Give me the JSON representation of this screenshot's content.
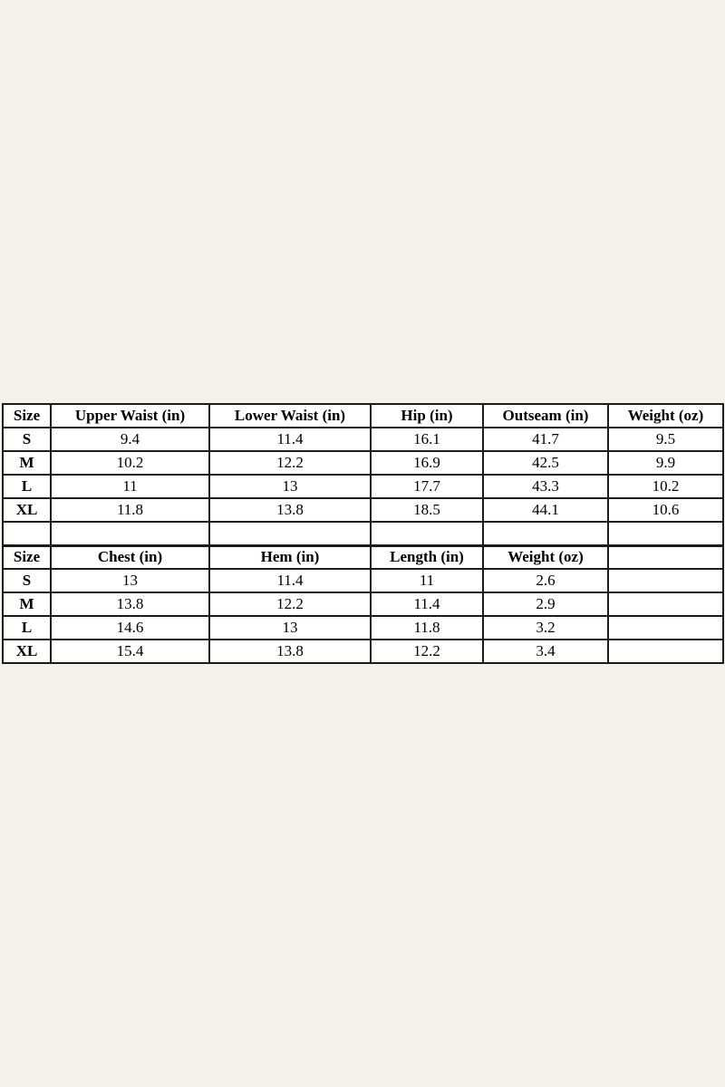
{
  "page": {
    "background_color": "#f5f1e8",
    "table_background_color": "#fffffe",
    "border_color": "#1b1b1b",
    "text_color": "#000000"
  },
  "layout": {
    "spacer_between_sections": true,
    "column_count": 6
  },
  "chart_data": [
    {
      "type": "table",
      "name": "bottoms-size-chart",
      "columns": [
        "Size",
        "Upper Waist (in)",
        "Lower Waist (in)",
        "Hip (in)",
        "Outseam (in)",
        "Weight (oz)"
      ],
      "rows": [
        [
          "S",
          "9.4",
          "11.4",
          "16.1",
          "41.7",
          "9.5"
        ],
        [
          "M",
          "10.2",
          "12.2",
          "16.9",
          "42.5",
          "9.9"
        ],
        [
          "L",
          "11",
          "13",
          "17.7",
          "43.3",
          "10.2"
        ],
        [
          "XL",
          "11.8",
          "13.8",
          "18.5",
          "44.1",
          "10.6"
        ]
      ]
    },
    {
      "type": "table",
      "name": "top-size-chart",
      "columns": [
        "Size",
        "Chest (in)",
        "Hem (in)",
        "Length (in)",
        "Weight (oz)",
        ""
      ],
      "rows": [
        [
          "S",
          "13",
          "11.4",
          "11",
          "2.6",
          ""
        ],
        [
          "M",
          "13.8",
          "12.2",
          "11.4",
          "2.9",
          ""
        ],
        [
          "L",
          "14.6",
          "13",
          "11.8",
          "3.2",
          ""
        ],
        [
          "XL",
          "15.4",
          "13.8",
          "12.2",
          "3.4",
          ""
        ]
      ]
    }
  ]
}
